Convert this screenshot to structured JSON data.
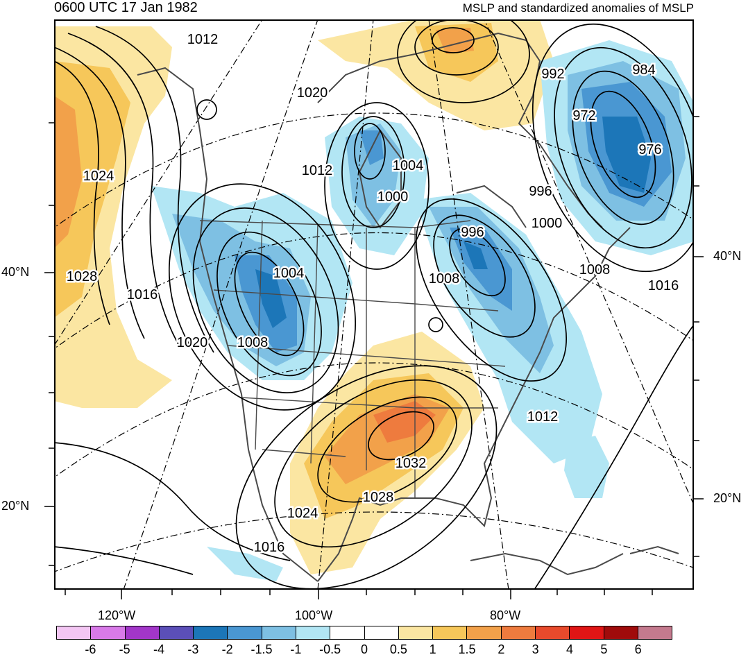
{
  "header": {
    "valid_time": "0600 UTC 17 Jan 1982",
    "product_title": "MSLP and standardized anomalies of MSLP"
  },
  "axes": {
    "lat_left": [
      "40°N",
      "20°N"
    ],
    "lat_right": [
      "40°N",
      "20°N"
    ],
    "lon_bottom": [
      "120°W",
      "100°W",
      "80°W"
    ]
  },
  "isobar_labels": [
    "1012",
    "1020",
    "1024",
    "1028",
    "1016",
    "1020",
    "1008",
    "1004",
    "1012",
    "1004",
    "1000",
    "996",
    "1008",
    "1000",
    "996",
    "992",
    "984",
    "972",
    "976",
    "1008",
    "1016",
    "1012",
    "1032",
    "1028",
    "1024",
    "1016"
  ],
  "colorbar": {
    "labels": [
      "-6",
      "-5",
      "-4",
      "-3",
      "-2",
      "-1.5",
      "-1",
      "-0.5",
      "0",
      "0.5",
      "1",
      "1.5",
      "2",
      "3",
      "4",
      "5",
      "6"
    ],
    "colors": [
      "#f3c6f3",
      "#d87ae8",
      "#a236c9",
      "#5b4fb8",
      "#1c76b8",
      "#4a97d2",
      "#7ec0e3",
      "#b2e6f4",
      "#ffffff",
      "#ffffff",
      "#fbe6a2",
      "#f6c75a",
      "#f2a14a",
      "#ee7b3e",
      "#e84a2c",
      "#e01515",
      "#a00b0b",
      "#c47a8e"
    ]
  },
  "palette": {
    "land_outline": "#4a4a4a",
    "isobar": "#000000"
  }
}
